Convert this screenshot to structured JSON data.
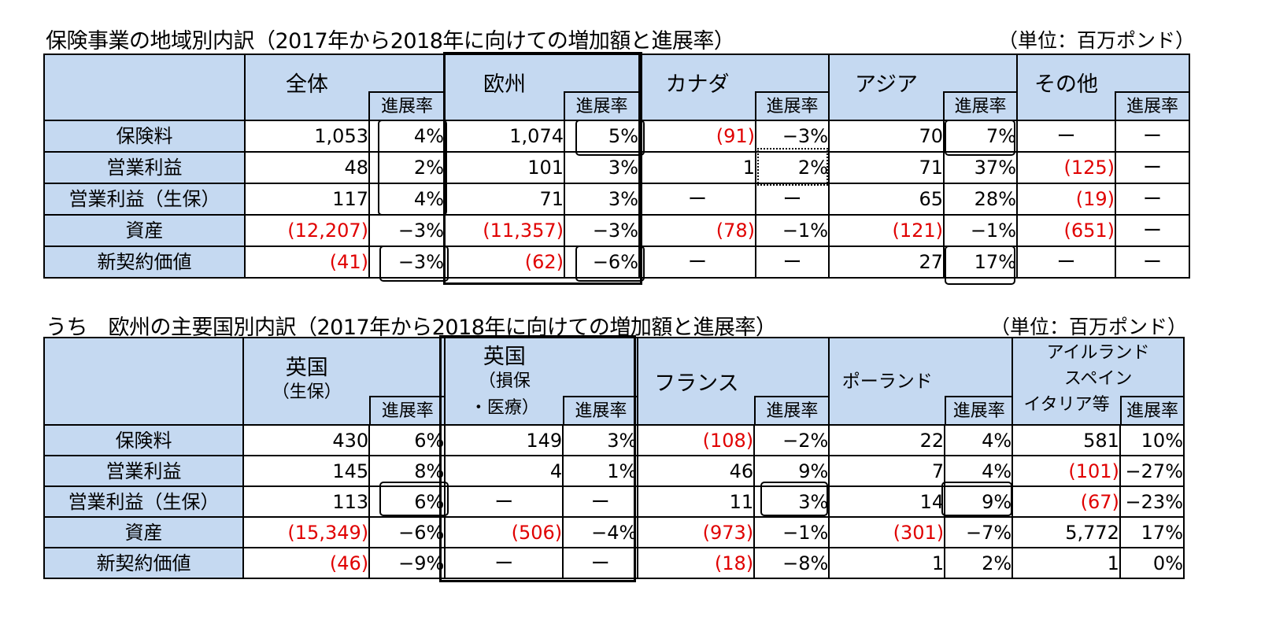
{
  "table1": {
    "title": "保険事業の地域別内訳（2017年から2018年に向けての増加額と進展率）",
    "unit": "（単位：百万ポンド）",
    "rate_label": "進展率",
    "regions": [
      "全体",
      "欧州",
      "カナダ",
      "アジア",
      "その他"
    ],
    "rows": [
      {
        "label": "保険料",
        "cells": [
          [
            "1,053",
            "4%"
          ],
          [
            "1,074",
            "5%"
          ],
          [
            "(91)",
            "−3%"
          ],
          [
            "70",
            "7%"
          ],
          [
            "ー",
            "ー"
          ]
        ]
      },
      {
        "label": "営業利益",
        "cells": [
          [
            "48",
            "2%"
          ],
          [
            "101",
            "3%"
          ],
          [
            "1",
            "2%"
          ],
          [
            "71",
            "37%"
          ],
          [
            "(125)",
            "ー"
          ]
        ]
      },
      {
        "label": "営業利益（生保）",
        "cells": [
          [
            "117",
            "4%"
          ],
          [
            "71",
            "3%"
          ],
          [
            "ー",
            "ー"
          ],
          [
            "65",
            "28%"
          ],
          [
            "(19)",
            "ー"
          ]
        ]
      },
      {
        "label": "資産",
        "cells": [
          [
            "(12,207)",
            "−3%"
          ],
          [
            "(11,357)",
            "−3%"
          ],
          [
            "(78)",
            "−1%"
          ],
          [
            "(121)",
            "−1%"
          ],
          [
            "(651)",
            "ー"
          ]
        ]
      },
      {
        "label": "新契約価値",
        "cells": [
          [
            "(41)",
            "−3%"
          ],
          [
            "(62)",
            "−6%"
          ],
          [
            "ー",
            "ー"
          ],
          [
            "27",
            "17%"
          ],
          [
            "ー",
            "ー"
          ]
        ]
      }
    ]
  },
  "table2": {
    "title": "うち　欧州の主要国別内訳（2017年から2018年に向けての増加額と進展率）",
    "unit": "（単位：百万ポンド）",
    "rate_label": "進展率",
    "headers": [
      {
        "name": "英国",
        "sub": "（生保）"
      },
      {
        "name": "英国",
        "sub1": "（損保",
        "sub2": "・医療）"
      },
      {
        "name": "フランス"
      },
      {
        "name": "ポーランド"
      },
      {
        "line1": "アイルランド",
        "line2": "スペイン",
        "line3": "イタリア等"
      }
    ],
    "rows": [
      {
        "label": "保険料",
        "cells": [
          [
            "430",
            "6%"
          ],
          [
            "149",
            "3%"
          ],
          [
            "(108)",
            "−2%"
          ],
          [
            "22",
            "4%"
          ],
          [
            "581",
            "10%"
          ]
        ]
      },
      {
        "label": "営業利益",
        "cells": [
          [
            "145",
            "8%"
          ],
          [
            "4",
            "1%"
          ],
          [
            "46",
            "9%"
          ],
          [
            "7",
            "4%"
          ],
          [
            "(101)",
            "−27%"
          ]
        ]
      },
      {
        "label": "営業利益（生保）",
        "cells": [
          [
            "113",
            "6%"
          ],
          [
            "ー",
            "ー"
          ],
          [
            "11",
            "3%"
          ],
          [
            "14",
            "9%"
          ],
          [
            "(67)",
            "−23%"
          ]
        ]
      },
      {
        "label": "資産",
        "cells": [
          [
            "(15,349)",
            "−6%"
          ],
          [
            "(506)",
            "−4%"
          ],
          [
            "(973)",
            "−1%"
          ],
          [
            "(301)",
            "−7%"
          ],
          [
            "5,772",
            "17%"
          ]
        ]
      },
      {
        "label": "新契約価値",
        "cells": [
          [
            "(46)",
            "−9%"
          ],
          [
            "ー",
            "ー"
          ],
          [
            "(18)",
            "−8%"
          ],
          [
            "1",
            "2%"
          ],
          [
            "1",
            "0%"
          ]
        ]
      }
    ]
  },
  "colors": {
    "header_bg": "#c5d9f1",
    "negative": "#e00000"
  }
}
